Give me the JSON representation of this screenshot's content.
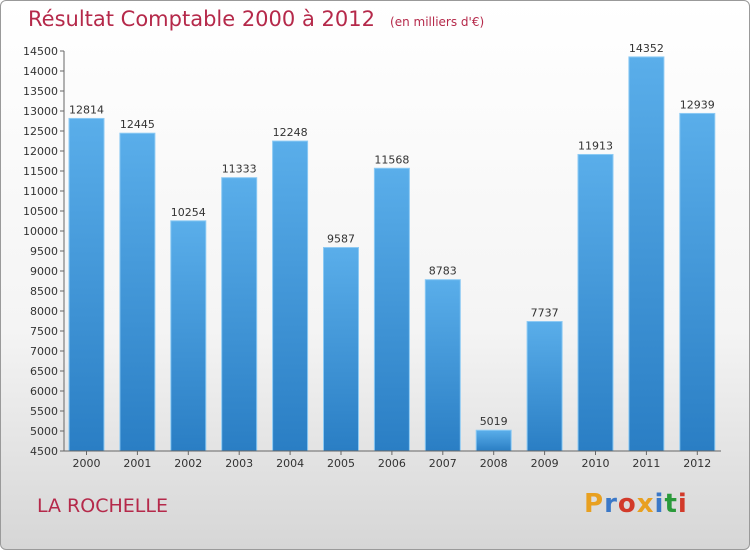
{
  "header": {
    "title": "Résultat Comptable 2000 à 2012",
    "subtitle": "(en milliers d'€)"
  },
  "footer": {
    "city": "LA ROCHELLE",
    "logo": "Proxiti",
    "logo_colors": [
      "#e8a020",
      "#3a78c8",
      "#d23a2a",
      "#e8a020",
      "#3a78c8",
      "#2a9a3a",
      "#d23a2a"
    ]
  },
  "chart_data": {
    "type": "bar",
    "categories": [
      "2000",
      "2001",
      "2002",
      "2003",
      "2004",
      "2005",
      "2006",
      "2007",
      "2008",
      "2009",
      "2010",
      "2011",
      "2012"
    ],
    "values": [
      12814,
      12445,
      10254,
      11333,
      12248,
      9587,
      11568,
      8783,
      5019,
      7737,
      11913,
      14352,
      12939
    ],
    "ylim": [
      4500,
      14500
    ],
    "ytick_step": 500,
    "grid": false,
    "bar_color": "#4fa3e6"
  }
}
